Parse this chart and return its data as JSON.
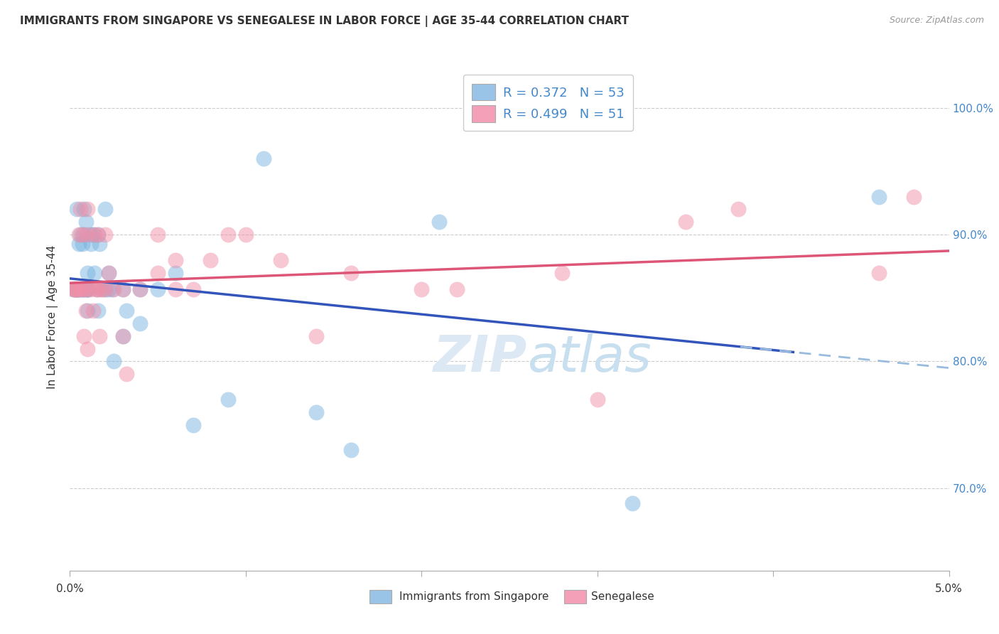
{
  "title": "IMMIGRANTS FROM SINGAPORE VS SENEGALESE IN LABOR FORCE | AGE 35-44 CORRELATION CHART",
  "source": "Source: ZipAtlas.com",
  "ylabel": "In Labor Force | Age 35-44",
  "x_min": 0.0,
  "x_max": 0.05,
  "y_min": 0.635,
  "y_max": 1.035,
  "y_ticks": [
    0.7,
    0.8,
    0.9,
    1.0
  ],
  "x_ticks": [
    0.0,
    0.01,
    0.02,
    0.03,
    0.04,
    0.05
  ],
  "watermark_zip": "ZIP",
  "watermark_atlas": "atlas",
  "R_blue": 0.372,
  "N_blue": 53,
  "R_pink": 0.499,
  "N_pink": 51,
  "singapore_x": [
    0.0002,
    0.0003,
    0.0003,
    0.0004,
    0.0004,
    0.0004,
    0.0005,
    0.0005,
    0.0005,
    0.0006,
    0.0006,
    0.0007,
    0.0007,
    0.0008,
    0.0008,
    0.0008,
    0.0009,
    0.0009,
    0.001,
    0.001,
    0.001,
    0.001,
    0.001,
    0.0012,
    0.0012,
    0.0013,
    0.0014,
    0.0015,
    0.0016,
    0.0016,
    0.0017,
    0.0018,
    0.002,
    0.002,
    0.0022,
    0.0022,
    0.0024,
    0.0025,
    0.003,
    0.003,
    0.0032,
    0.004,
    0.004,
    0.005,
    0.006,
    0.007,
    0.009,
    0.011,
    0.014,
    0.016,
    0.021,
    0.032,
    0.046
  ],
  "singapore_y": [
    0.857,
    0.857,
    0.857,
    0.857,
    0.857,
    0.92,
    0.857,
    0.857,
    0.893,
    0.857,
    0.9,
    0.857,
    0.893,
    0.857,
    0.9,
    0.92,
    0.857,
    0.91,
    0.857,
    0.857,
    0.857,
    0.87,
    0.84,
    0.893,
    0.9,
    0.9,
    0.87,
    0.857,
    0.9,
    0.84,
    0.893,
    0.857,
    0.857,
    0.92,
    0.857,
    0.87,
    0.857,
    0.8,
    0.857,
    0.82,
    0.84,
    0.857,
    0.83,
    0.857,
    0.87,
    0.75,
    0.77,
    0.96,
    0.76,
    0.73,
    0.91,
    0.688,
    0.93
  ],
  "senegal_x": [
    0.0002,
    0.0003,
    0.0003,
    0.0004,
    0.0005,
    0.0005,
    0.0006,
    0.0007,
    0.0007,
    0.0008,
    0.0008,
    0.0009,
    0.001,
    0.001,
    0.001,
    0.001,
    0.0012,
    0.0013,
    0.0014,
    0.0015,
    0.0016,
    0.0016,
    0.0017,
    0.0018,
    0.002,
    0.002,
    0.0022,
    0.0025,
    0.003,
    0.003,
    0.0032,
    0.004,
    0.005,
    0.005,
    0.006,
    0.006,
    0.007,
    0.008,
    0.009,
    0.01,
    0.012,
    0.014,
    0.016,
    0.02,
    0.022,
    0.028,
    0.03,
    0.035,
    0.038,
    0.046,
    0.048
  ],
  "senegal_y": [
    0.857,
    0.857,
    0.857,
    0.857,
    0.9,
    0.857,
    0.92,
    0.857,
    0.9,
    0.857,
    0.82,
    0.84,
    0.9,
    0.92,
    0.857,
    0.81,
    0.857,
    0.84,
    0.9,
    0.857,
    0.857,
    0.9,
    0.82,
    0.857,
    0.9,
    0.857,
    0.87,
    0.857,
    0.857,
    0.82,
    0.79,
    0.857,
    0.9,
    0.87,
    0.857,
    0.88,
    0.857,
    0.88,
    0.9,
    0.9,
    0.88,
    0.82,
    0.87,
    0.857,
    0.857,
    0.87,
    0.77,
    0.91,
    0.92,
    0.87,
    0.93
  ],
  "blue_scatter_color": "#7ab4e0",
  "pink_scatter_color": "#f090a8",
  "blue_line_color": "#3355bb",
  "pink_line_color": "#dd5577",
  "blue_dash_color": "#99bbdd",
  "legend_blue_box": "#99c4e8",
  "legend_pink_box": "#f4a0b8",
  "right_axis_color": "#4488cc"
}
